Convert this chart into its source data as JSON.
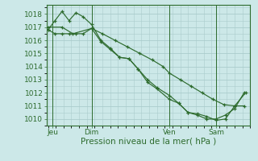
{
  "bg_color": "#cce8e8",
  "grid_major_color": "#aacccc",
  "grid_minor_color": "#aacccc",
  "line_color": "#2d6b2d",
  "xlabel": "Pression niveau de la mer( hPa )",
  "xlabel_fontsize": 7.5,
  "tick_fontsize": 6.5,
  "ylim": [
    1009.5,
    1018.7
  ],
  "yticks": [
    1010,
    1011,
    1012,
    1013,
    1014,
    1015,
    1016,
    1017,
    1018
  ],
  "xlim": [
    -0.1,
    13.0
  ],
  "day_labels": [
    "Jeu",
    "Dim",
    "Ven",
    "Sam"
  ],
  "day_positions": [
    0.3,
    2.8,
    7.8,
    10.8
  ],
  "vline_positions": [
    0.3,
    2.8,
    7.8,
    10.8
  ],
  "series": [
    {
      "x": [
        0.0,
        0.9,
        1.6,
        2.8,
        3.5,
        4.3,
        5.1,
        5.9,
        6.7,
        7.4,
        7.8,
        8.5,
        9.2,
        9.9,
        10.6,
        11.3,
        12.0,
        12.7
      ],
      "y": [
        1017.0,
        1017.0,
        1016.5,
        1016.9,
        1016.5,
        1016.0,
        1015.5,
        1015.0,
        1014.5,
        1014.0,
        1013.5,
        1013.0,
        1012.5,
        1012.0,
        1011.5,
        1011.1,
        1011.0,
        1012.0
      ]
    },
    {
      "x": [
        0.0,
        0.45,
        0.9,
        1.35,
        1.8,
        2.25,
        2.8,
        3.4,
        4.0,
        4.6,
        5.2,
        5.8,
        6.4,
        7.0,
        7.8,
        8.4,
        9.0,
        9.6,
        10.2,
        10.8,
        11.4,
        12.0,
        12.6
      ],
      "y": [
        1016.8,
        1017.5,
        1018.2,
        1017.5,
        1018.1,
        1017.8,
        1017.2,
        1016.0,
        1015.4,
        1014.7,
        1014.6,
        1013.8,
        1013.0,
        1012.4,
        1011.8,
        1011.2,
        1010.5,
        1010.4,
        1010.2,
        1009.9,
        1010.0,
        1011.0,
        1011.0
      ]
    },
    {
      "x": [
        0.0,
        0.45,
        0.9,
        1.35,
        1.8,
        2.25,
        2.8,
        3.4,
        4.0,
        4.6,
        5.2,
        5.8,
        6.4,
        7.0,
        7.8,
        8.4,
        9.0,
        9.6,
        10.2,
        10.8,
        11.4,
        12.0,
        12.6
      ],
      "y": [
        1016.8,
        1016.5,
        1016.5,
        1016.5,
        1016.5,
        1016.5,
        1016.9,
        1015.9,
        1015.3,
        1014.7,
        1014.6,
        1013.8,
        1012.8,
        1012.3,
        1011.5,
        1011.2,
        1010.5,
        1010.3,
        1010.0,
        1010.0,
        1010.3,
        1010.8,
        1012.0
      ]
    }
  ]
}
